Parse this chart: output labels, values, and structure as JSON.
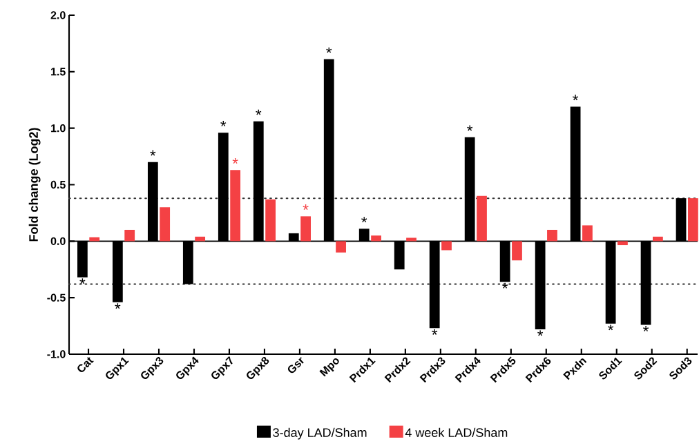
{
  "chart_data": {
    "type": "bar",
    "ylabel": "Fold change (Log2)",
    "categories": [
      "Cat",
      "Gpx1",
      "Gpx3",
      "Gpx4",
      "Gpx7",
      "Gpx8",
      "Gsr",
      "Mpo",
      "Prdx1",
      "Prdx2",
      "Prdx3",
      "Prdx4",
      "Prdx5",
      "Prdx6",
      "Pxdn",
      "Sod1",
      "Sod2",
      "Sod3"
    ],
    "series": [
      {
        "name": "3-day LAD/Sham",
        "color": "#000000",
        "values": [
          -0.32,
          -0.54,
          0.7,
          -0.38,
          0.96,
          1.06,
          0.07,
          1.61,
          0.11,
          -0.25,
          -0.77,
          0.92,
          -0.36,
          -0.78,
          1.19,
          -0.73,
          -0.74,
          0.38
        ]
      },
      {
        "name": "4 week LAD/Sham",
        "color": "#f44144",
        "values": [
          0.035,
          0.1,
          0.3,
          0.04,
          0.63,
          0.37,
          0.22,
          -0.1,
          0.05,
          0.03,
          -0.08,
          0.4,
          -0.17,
          0.1,
          0.14,
          -0.035,
          0.04,
          0.38
        ]
      }
    ],
    "ylim": [
      -1.0,
      2.0
    ],
    "yticks": [
      {
        "value": -1.0,
        "label": "-1.0"
      },
      {
        "value": -0.5,
        "label": "-0.5"
      },
      {
        "value": 0.0,
        "label": "0.0"
      },
      {
        "value": 0.5,
        "label": "0.5"
      },
      {
        "value": 1.0,
        "label": "1.0"
      },
      {
        "value": 1.5,
        "label": "1.5"
      },
      {
        "value": 2.0,
        "label": "2.0"
      }
    ],
    "ref_lines": [
      {
        "axis": "y",
        "value": 0.38,
        "line_style": "dotted",
        "color": "#333333"
      },
      {
        "axis": "y",
        "value": -0.38,
        "line_style": "dotted",
        "color": "#333333"
      }
    ],
    "annotations": [
      {
        "text": "*",
        "x": "Cat",
        "y": -0.32
      },
      {
        "text": "*",
        "x": "Gpx1",
        "y": -0.54
      },
      {
        "text": "*",
        "x": "Gpx3",
        "y": 0.7
      },
      {
        "text": "*",
        "x": "Gpx7",
        "y": 0.96
      },
      {
        "text": "*",
        "x": "Gpx7",
        "y": 0.63
      },
      {
        "text": "*",
        "x": "Gpx8",
        "y": 1.06
      },
      {
        "text": "*",
        "x": "Gsr",
        "y": 0.22
      },
      {
        "text": "*",
        "x": "Mpo",
        "y": 1.61
      },
      {
        "text": "*",
        "x": "Prdx1",
        "y": 0.11
      },
      {
        "text": "*",
        "x": "Prdx3",
        "y": -0.77
      },
      {
        "text": "*",
        "x": "Prdx4",
        "y": 0.92
      },
      {
        "text": "*",
        "x": "Prdx5",
        "y": -0.36
      },
      {
        "text": "*",
        "x": "Prdx6",
        "y": -0.78
      },
      {
        "text": "*",
        "x": "Pxdn",
        "y": 1.19
      },
      {
        "text": "*",
        "x": "Sod1",
        "y": -0.73
      },
      {
        "text": "*",
        "x": "Sod2",
        "y": -0.74
      }
    ],
    "legend": "bottom"
  }
}
